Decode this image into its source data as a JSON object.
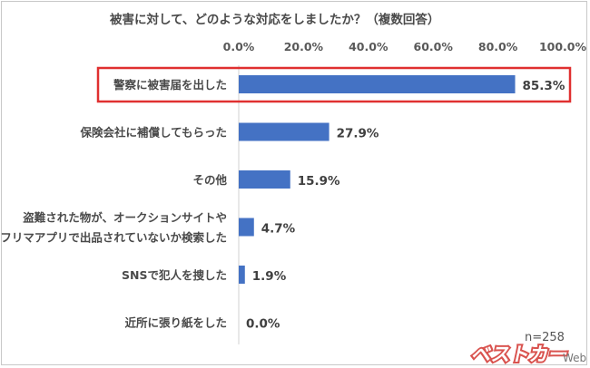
{
  "title": "被害に対して、どのような対応をしましたか？（複数回答）",
  "sample_size": "n=258",
  "watermark": "ベストカーWeb",
  "colors": {
    "bar": "#4472C4",
    "highlight": "#E03030"
  },
  "chart_data": {
    "type": "bar",
    "orientation": "horizontal",
    "categories": [
      [
        "警察に被害届を出した"
      ],
      [
        "保険会社に補償してもらった"
      ],
      [
        "その他"
      ],
      [
        "盗難された物が、オークションサイトや",
        "フリマアプリで出品されていないか検索した"
      ],
      [
        "SNSで犯人を捜した"
      ],
      [
        "近所に張り紙をした"
      ]
    ],
    "values": [
      85.3,
      27.9,
      15.9,
      4.7,
      1.9,
      0.0
    ],
    "value_labels": [
      "85.3%",
      "27.9%",
      "15.9%",
      "4.7%",
      "1.9%",
      "0.0%"
    ],
    "xlim": [
      0,
      100
    ],
    "x_ticks": [
      "0.0%",
      "20.0%",
      "40.0%",
      "60.0%",
      "80.0%",
      "100.0%"
    ],
    "highlighted_category_index": 0,
    "grid": false
  }
}
